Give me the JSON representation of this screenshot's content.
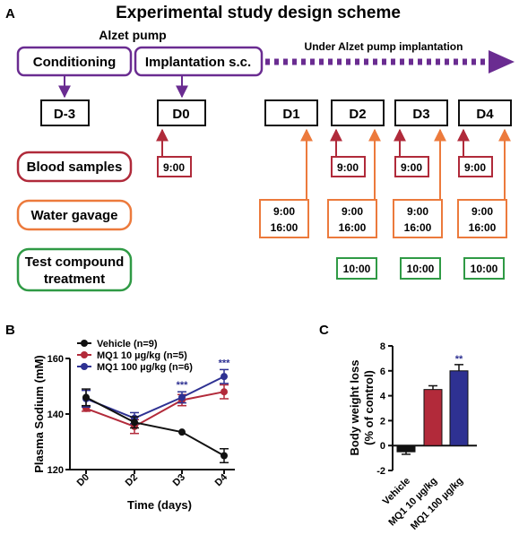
{
  "colors": {
    "purple": "#6a2c91",
    "red": "#b02a3a",
    "orange": "#ec7a3c",
    "green": "#2f9a45",
    "black": "#111111",
    "navy": "#2e3192",
    "crimson": "#b22a3a"
  },
  "panelA": {
    "label": "A",
    "title": "Experimental study design scheme",
    "pump_label": "Alzet pump",
    "conditioning": "Conditioning",
    "implantation": "Implantation s.c.",
    "arrow_label": "Under Alzet pump implantation",
    "days": [
      "D-3",
      "D0",
      "D1",
      "D2",
      "D3",
      "D4"
    ],
    "rows": {
      "blood": "Blood samples",
      "water": "Water gavage",
      "test_line1": "Test compound",
      "test_line2": "treatment"
    },
    "times": {
      "blood_d0": "9:00",
      "blood_d2": "9:00",
      "blood_d3": "9:00",
      "blood_d4": "9:00",
      "water_line1": "9:00",
      "water_line2": "16:00",
      "test": "10:00"
    }
  },
  "panelB": {
    "label": "B",
    "ylabel": "Plasma Sodium (mM)",
    "xlabel": "Time (days)",
    "significance": "***"
  },
  "panelC": {
    "label": "C",
    "ylabel_line1": "Body weight loss",
    "ylabel_line2": "(% of control)",
    "significance": "**"
  },
  "chart_data": [
    {
      "type": "line",
      "x": [
        "D0",
        "D2",
        "D3",
        "D4"
      ],
      "ylabel": "Plasma Sodium (mM)",
      "xlabel": "Time (days)",
      "ylim": [
        120,
        160
      ],
      "yticks": [
        120,
        140,
        160
      ],
      "series": [
        {
          "name": "Vehicle (n=9)",
          "color": "#111111",
          "values": [
            146,
            137,
            133.5,
            125
          ],
          "errors": [
            3,
            2,
            0,
            2.5
          ]
        },
        {
          "name": "MQ1 10 µg/kg (n=5)",
          "color": "#b22a3a",
          "values": [
            142,
            135.5,
            145,
            148
          ],
          "errors": [
            1,
            2.5,
            2,
            2.5
          ]
        },
        {
          "name": "MQ1 100 µg/kg (n=6)",
          "color": "#2e3192",
          "values": [
            145.5,
            138.5,
            146,
            153.5
          ],
          "errors": [
            3,
            2,
            2,
            2.5
          ]
        }
      ],
      "annotations": [
        {
          "x": "D3",
          "text": "***"
        },
        {
          "x": "D4",
          "text": "***"
        }
      ]
    },
    {
      "type": "bar",
      "categories": [
        "Vehicle",
        "MQ1 10 µg/kg",
        "MQ1 100 µg/kg"
      ],
      "values": [
        -0.5,
        4.5,
        6.0
      ],
      "errors": [
        0.2,
        0.3,
        0.5
      ],
      "colors": [
        "#111111",
        "#b22a3a",
        "#2e3192"
      ],
      "ylabel": "Body weight loss (% of control)",
      "ylim": [
        -2,
        8
      ],
      "yticks": [
        -2,
        0,
        2,
        4,
        6,
        8
      ],
      "annotations": [
        {
          "category": "MQ1 100 µg/kg",
          "text": "**"
        }
      ]
    }
  ]
}
